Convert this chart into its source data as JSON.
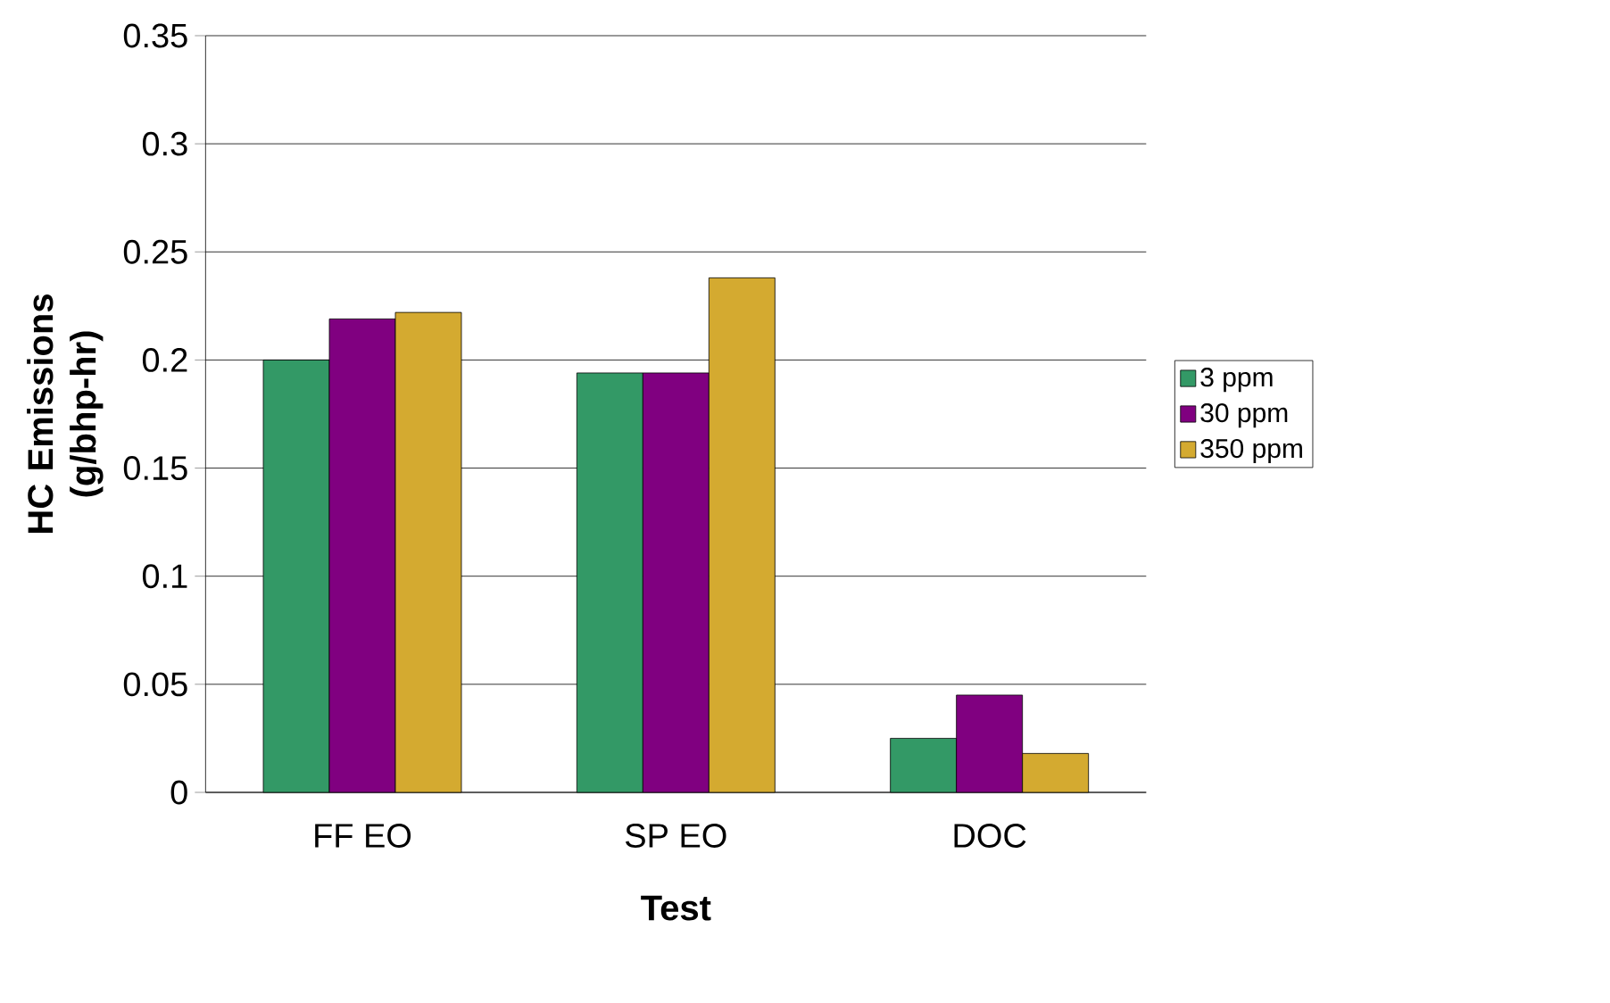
{
  "chart_data": {
    "type": "bar",
    "xlabel": "Test",
    "ylabel": "HC Emissions (g/bhp-hr)",
    "categories": [
      "FF EO",
      "SP EO",
      "DOC"
    ],
    "series": [
      {
        "name": "3 ppm",
        "color": "#339966",
        "values": [
          0.2,
          0.194,
          0.025
        ]
      },
      {
        "name": "30 ppm",
        "color": "#800080",
        "values": [
          0.219,
          0.194,
          0.045
        ]
      },
      {
        "name": "350 ppm",
        "color": "#d4aa30",
        "values": [
          0.222,
          0.238,
          0.018
        ]
      }
    ],
    "ylim": [
      0,
      0.35
    ],
    "yticks": [
      0,
      0.05,
      0.1,
      0.15,
      0.2,
      0.25,
      0.3,
      0.35
    ],
    "grid": "y",
    "legend": "right"
  }
}
